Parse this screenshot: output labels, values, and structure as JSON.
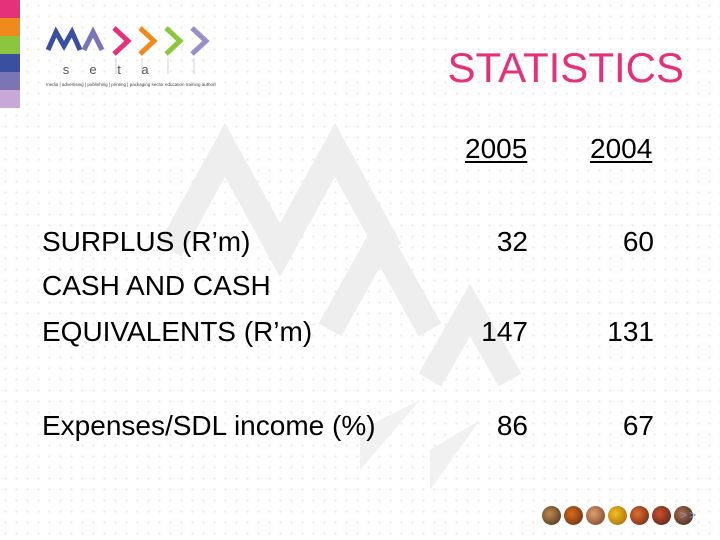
{
  "logo": {
    "letters": [
      "s",
      "e",
      "t",
      "a"
    ],
    "tagline": "media | advertising | publishing | printing | packaging  sector education training authority",
    "colors": {
      "m": "#3b4fa0",
      "a": "#7b74b5",
      "arrow1": "#e5317a",
      "arrow2": "#f08a1c",
      "arrow3": "#8cc63f",
      "arrow4": "#9a8fc8"
    }
  },
  "title": "STATISTICS",
  "columns": [
    "2005",
    "2004"
  ],
  "rows": [
    {
      "label_lines": [
        "SURPLUS (R’m)"
      ],
      "values": [
        "32",
        "60"
      ]
    },
    {
      "label_lines": [
        "CASH AND CASH",
        "EQUIVALENTS (R’m)"
      ],
      "values": [
        "147",
        "131"
      ]
    },
    {
      "label_lines": [
        "Expenses/SDL income (%)"
      ],
      "values": [
        "86",
        "67"
      ]
    }
  ],
  "nav": {
    "next_label": ">>"
  },
  "colors": {
    "title": "#e5317a",
    "strips": [
      "#e5317a",
      "#f08a1c",
      "#8cc63f",
      "#3b4fa0",
      "#7b74b5",
      "#c7a8d6"
    ]
  },
  "icons": {
    "thumbnails": [
      "thumbnail-icon",
      "thumbnail-icon",
      "thumbnail-icon",
      "thumbnail-icon",
      "thumbnail-icon",
      "thumbnail-icon",
      "thumbnail-icon"
    ]
  }
}
